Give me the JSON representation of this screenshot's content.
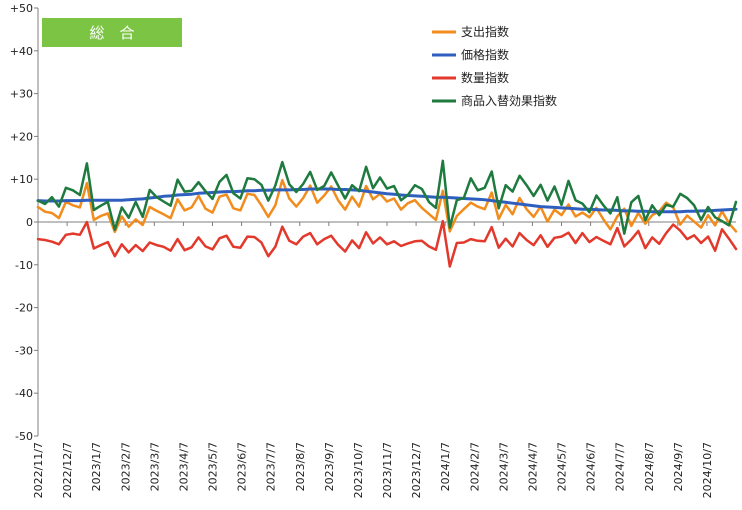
{
  "chart_data": {
    "type": "line",
    "title": "",
    "badge": "総　合",
    "xlabel": "",
    "ylabel": "",
    "ylim": [
      -50,
      50
    ],
    "y_ticks": [
      "+50",
      "+40",
      "+30",
      "+20",
      "+10",
      "0",
      "-10",
      "-20",
      "-30",
      "-40",
      "-50"
    ],
    "x_ticks": [
      "2022/11/7",
      "2022/12/7",
      "2023/1/7",
      "2023/2/7",
      "2023/3/7",
      "2023/4/7",
      "2023/5/7",
      "2023/6/7",
      "2023/7/7",
      "2023/8/7",
      "2023/9/7",
      "2023/10/7",
      "2023/11/7",
      "2023/12/7",
      "2024/1/7",
      "2024/2/7",
      "2024/3/7",
      "2024/4/7",
      "2024/5/7",
      "2024/6/7",
      "2024/7/7",
      "2024/8/7",
      "2024/9/7",
      "2024/10/7"
    ],
    "grid": false,
    "legend_position": "top-right",
    "series": [
      {
        "name": "支出指数",
        "color": "#F28C1C",
        "values": [
          3.5,
          2.4,
          2.1,
          0.9,
          4.7,
          3.9,
          3.4,
          9.1,
          0.5,
          1.4,
          2.0,
          -2.3,
          1.3,
          -1.1,
          0.6,
          -0.7,
          3.5,
          2.6,
          1.8,
          0.9,
          5.3,
          2.7,
          3.4,
          6.1,
          3.1,
          2.2,
          5.9,
          6.4,
          3.2,
          2.7,
          6.6,
          6.3,
          3.9,
          1.2,
          3.9,
          9.8,
          5.5,
          3.6,
          5.6,
          8.5,
          4.5,
          6.2,
          8.3,
          5.1,
          2.9,
          5.9,
          3.6,
          8.4,
          5.3,
          6.6,
          4.8,
          5.5,
          2.9,
          4.4,
          5.1,
          3.3,
          1.9,
          0.5,
          7.3,
          -2.2,
          1.4,
          3.0,
          4.5,
          3.6,
          3.0,
          6.9,
          0.7,
          4.0,
          1.8,
          5.6,
          3.0,
          1.2,
          3.6,
          0.1,
          2.9,
          1.6,
          4.1,
          1.3,
          2.2,
          1.1,
          3.3,
          0.6,
          -1.7,
          1.3,
          3.1,
          -0.9,
          2.1,
          -0.4,
          1.6,
          2.5,
          4.5,
          3.4,
          -0.6,
          1.5,
          0.1,
          -1.3,
          1.6,
          -0.8,
          2.5,
          -0.3,
          -2.2
        ]
      },
      {
        "name": "価格指数",
        "color": "#2E5FBF",
        "values": [
          5.0,
          4.9,
          4.9,
          4.9,
          5.0,
          5.0,
          5.0,
          5.1,
          5.1,
          5.1,
          5.1,
          5.1,
          5.1,
          5.2,
          5.3,
          5.4,
          5.6,
          5.8,
          6.0,
          6.1,
          6.3,
          6.4,
          6.5,
          6.7,
          6.8,
          6.9,
          7.0,
          7.1,
          7.1,
          7.2,
          7.3,
          7.3,
          7.4,
          7.4,
          7.5,
          7.5,
          7.5,
          7.6,
          7.6,
          7.7,
          7.7,
          7.7,
          7.7,
          7.6,
          7.6,
          7.5,
          7.4,
          7.2,
          7.0,
          6.8,
          6.6,
          6.5,
          6.3,
          6.2,
          6.1,
          6.0,
          5.9,
          5.8,
          5.8,
          5.7,
          5.6,
          5.5,
          5.4,
          5.3,
          5.2,
          5.0,
          4.8,
          4.6,
          4.4,
          4.2,
          4.0,
          3.8,
          3.6,
          3.5,
          3.4,
          3.3,
          3.2,
          3.1,
          3.0,
          3.0,
          2.9,
          2.8,
          2.8,
          2.7,
          2.6,
          2.6,
          2.5,
          2.5,
          2.4,
          2.4,
          2.4,
          2.4,
          2.4,
          2.5,
          2.5,
          2.6,
          2.6,
          2.7,
          2.8,
          2.9,
          3.0
        ]
      },
      {
        "name": "数量指数",
        "color": "#E2392C",
        "values": [
          -4.0,
          -4.2,
          -4.6,
          -5.2,
          -3.0,
          -2.7,
          -3.0,
          0.0,
          -6.2,
          -5.4,
          -4.7,
          -8.0,
          -5.2,
          -7.1,
          -5.4,
          -6.8,
          -4.8,
          -5.4,
          -5.8,
          -6.7,
          -4.0,
          -6.6,
          -5.9,
          -3.6,
          -5.7,
          -6.4,
          -3.8,
          -3.2,
          -5.8,
          -6.0,
          -3.4,
          -3.5,
          -4.8,
          -8.0,
          -5.8,
          -1.1,
          -4.4,
          -5.2,
          -3.4,
          -2.6,
          -5.2,
          -4.0,
          -3.2,
          -5.3,
          -6.9,
          -4.3,
          -6.1,
          -2.4,
          -5.0,
          -3.6,
          -5.2,
          -4.5,
          -5.6,
          -5.0,
          -4.5,
          -4.4,
          -5.7,
          -6.5,
          0.2,
          -10.4,
          -4.9,
          -4.8,
          -4.0,
          -4.4,
          -4.5,
          -1.2,
          -6.0,
          -3.9,
          -5.7,
          -2.6,
          -4.2,
          -5.4,
          -3.1,
          -5.8,
          -3.7,
          -3.4,
          -2.5,
          -4.9,
          -2.6,
          -4.7,
          -3.5,
          -4.4,
          -5.2,
          -1.4,
          -5.7,
          -4.1,
          -2.1,
          -6.1,
          -3.6,
          -5.1,
          -2.6,
          -0.6,
          -2.0,
          -4.0,
          -3.1,
          -4.9,
          -3.4,
          -6.7,
          -1.7,
          -3.9,
          -6.3
        ]
      },
      {
        "name": "商品入替効果指数",
        "color": "#1E7A3E",
        "values": [
          5.0,
          4.2,
          5.8,
          3.6,
          8.0,
          7.4,
          6.3,
          13.7,
          2.8,
          3.8,
          4.7,
          -1.8,
          3.4,
          1.0,
          4.7,
          1.2,
          7.5,
          5.8,
          4.8,
          3.8,
          9.9,
          7.1,
          7.3,
          9.3,
          7.2,
          5.4,
          9.4,
          11.0,
          6.7,
          5.5,
          10.2,
          10.0,
          8.7,
          5.0,
          8.5,
          14.0,
          8.8,
          7.0,
          8.9,
          11.7,
          7.5,
          8.4,
          11.6,
          8.5,
          5.5,
          8.6,
          7.2,
          12.9,
          7.9,
          10.4,
          7.8,
          8.4,
          5.1,
          6.3,
          8.6,
          7.7,
          4.7,
          3.3,
          14.3,
          -1.3,
          5.1,
          5.6,
          10.2,
          7.4,
          8.0,
          11.8,
          3.2,
          8.6,
          7.1,
          10.8,
          8.6,
          6.1,
          8.7,
          5.0,
          8.3,
          4.0,
          9.6,
          5.1,
          4.3,
          2.3,
          6.2,
          3.9,
          2.0,
          5.8,
          -2.7,
          4.6,
          6.1,
          0.4,
          3.9,
          1.6,
          4.0,
          3.6,
          6.6,
          5.6,
          3.9,
          0.5,
          3.5,
          1.1,
          0.2,
          -0.8,
          4.7
        ]
      }
    ]
  }
}
